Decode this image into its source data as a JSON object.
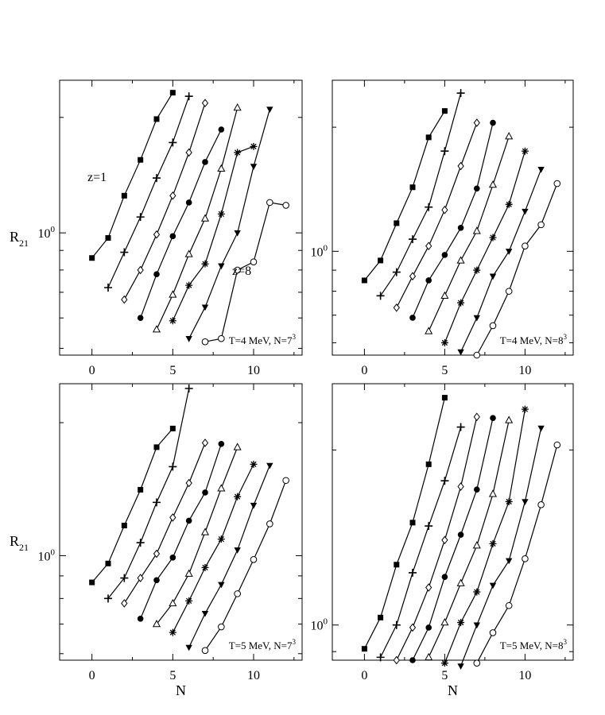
{
  "figure": {
    "ylabel_text": "R",
    "ylabel_sub": "21",
    "xlabel": "N"
  },
  "chart_data": [
    {
      "type": "line",
      "panel": "top-left",
      "yscale": "log",
      "xlim": [
        -2,
        13
      ],
      "ylim": [
        0.48,
        2.5
      ],
      "xticks": [
        0,
        5,
        10
      ],
      "yticklabel_base": "10",
      "yticklabel_exp": "0",
      "label_T": "T=4 MeV, N=7",
      "label_exp": "3",
      "annotations": [
        "z=1",
        "z=8"
      ],
      "series": [
        {
          "z": 1,
          "marker": "square-filled",
          "x": [
            0,
            1,
            2,
            3,
            4,
            5
          ],
          "y": [
            0.86,
            0.97,
            1.25,
            1.55,
            1.98,
            2.32
          ]
        },
        {
          "z": 2,
          "marker": "plus",
          "x": [
            1,
            2,
            3,
            4,
            5,
            6
          ],
          "y": [
            0.72,
            0.89,
            1.1,
            1.39,
            1.72,
            2.27
          ]
        },
        {
          "z": 3,
          "marker": "diamond-open",
          "x": [
            2,
            3,
            4,
            5,
            6,
            7
          ],
          "y": [
            0.67,
            0.8,
            0.99,
            1.25,
            1.62,
            2.18
          ]
        },
        {
          "z": 4,
          "marker": "circle-filled",
          "x": [
            3,
            4,
            5,
            6,
            7,
            8
          ],
          "y": [
            0.6,
            0.78,
            0.98,
            1.2,
            1.53,
            1.86
          ]
        },
        {
          "z": 5,
          "marker": "triangle-up-open",
          "x": [
            4,
            5,
            6,
            7,
            8,
            9
          ],
          "y": [
            0.56,
            0.69,
            0.88,
            1.09,
            1.47,
            2.12
          ]
        },
        {
          "z": 6,
          "marker": "star",
          "x": [
            5,
            6,
            7,
            8,
            9,
            10
          ],
          "y": [
            0.59,
            0.73,
            0.83,
            1.12,
            1.62,
            1.68
          ]
        },
        {
          "z": 7,
          "marker": "triangle-down-filled",
          "x": [
            6,
            7,
            8,
            9,
            10,
            11
          ],
          "y": [
            0.53,
            0.64,
            0.82,
            1.0,
            1.49,
            2.1
          ]
        },
        {
          "z": 8,
          "marker": "circle-open",
          "x": [
            7,
            8,
            9,
            10,
            11,
            12
          ],
          "y": [
            0.52,
            0.53,
            0.8,
            0.84,
            1.2,
            1.18
          ]
        }
      ]
    },
    {
      "type": "line",
      "panel": "top-right",
      "yscale": "log",
      "xlim": [
        -2,
        13
      ],
      "ylim": [
        0.56,
        2.6
      ],
      "xticks": [
        0,
        5,
        10
      ],
      "yticklabel_base": "10",
      "yticklabel_exp": "0",
      "label_T": "T=4 MeV, N=8",
      "label_exp": "3",
      "annotations": [],
      "series": [
        {
          "z": 1,
          "marker": "square-filled",
          "x": [
            0,
            1,
            2,
            3,
            4,
            5
          ],
          "y": [
            0.85,
            0.95,
            1.17,
            1.43,
            1.89,
            2.19
          ]
        },
        {
          "z": 2,
          "marker": "plus",
          "x": [
            1,
            2,
            3,
            4,
            5,
            6
          ],
          "y": [
            0.78,
            0.89,
            1.07,
            1.28,
            1.75,
            2.42
          ]
        },
        {
          "z": 3,
          "marker": "diamond-open",
          "x": [
            2,
            3,
            4,
            5,
            6,
            7
          ],
          "y": [
            0.73,
            0.87,
            1.03,
            1.26,
            1.61,
            2.05
          ]
        },
        {
          "z": 4,
          "marker": "circle-filled",
          "x": [
            3,
            4,
            5,
            6,
            7,
            8
          ],
          "y": [
            0.69,
            0.85,
            0.98,
            1.14,
            1.42,
            2.05
          ]
        },
        {
          "z": 5,
          "marker": "triangle-up-open",
          "x": [
            4,
            5,
            6,
            7,
            8,
            9
          ],
          "y": [
            0.64,
            0.78,
            0.95,
            1.12,
            1.45,
            1.9
          ]
        },
        {
          "z": 6,
          "marker": "star",
          "x": [
            5,
            6,
            7,
            8,
            9,
            10
          ],
          "y": [
            0.6,
            0.75,
            0.9,
            1.08,
            1.3,
            1.75
          ]
        },
        {
          "z": 7,
          "marker": "triangle-down-filled",
          "x": [
            6,
            7,
            8,
            9,
            10,
            11
          ],
          "y": [
            0.57,
            0.69,
            0.87,
            1.0,
            1.25,
            1.58
          ]
        },
        {
          "z": 8,
          "marker": "circle-open",
          "x": [
            7,
            8,
            9,
            10,
            11,
            12
          ],
          "y": [
            0.56,
            0.66,
            0.8,
            1.03,
            1.16,
            1.46
          ]
        }
      ]
    },
    {
      "type": "line",
      "panel": "bottom-left",
      "yscale": "log",
      "xlim": [
        -2,
        13
      ],
      "ylim": [
        0.58,
        2.45
      ],
      "xticks": [
        0,
        5,
        10
      ],
      "yticklabel_base": "10",
      "yticklabel_exp": "0",
      "label_T": "T=5 MeV, N=7",
      "label_exp": "3",
      "annotations": [],
      "series": [
        {
          "z": 1,
          "marker": "square-filled",
          "x": [
            0,
            1,
            2,
            3,
            4,
            5
          ],
          "y": [
            0.87,
            0.96,
            1.17,
            1.41,
            1.76,
            1.94
          ]
        },
        {
          "z": 2,
          "marker": "plus",
          "x": [
            1,
            2,
            3,
            4,
            5,
            6
          ],
          "y": [
            0.8,
            0.89,
            1.07,
            1.32,
            1.59,
            2.39
          ]
        },
        {
          "z": 3,
          "marker": "diamond-open",
          "x": [
            2,
            3,
            4,
            5,
            6,
            7
          ],
          "y": [
            0.78,
            0.89,
            1.01,
            1.22,
            1.46,
            1.8
          ]
        },
        {
          "z": 4,
          "marker": "circle-filled",
          "x": [
            3,
            4,
            5,
            6,
            7,
            8
          ],
          "y": [
            0.72,
            0.88,
            0.99,
            1.2,
            1.39,
            1.79
          ]
        },
        {
          "z": 5,
          "marker": "triangle-up-open",
          "x": [
            4,
            5,
            6,
            7,
            8,
            9
          ],
          "y": [
            0.7,
            0.78,
            0.91,
            1.13,
            1.42,
            1.76
          ]
        },
        {
          "z": 6,
          "marker": "star",
          "x": [
            5,
            6,
            7,
            8,
            9,
            10
          ],
          "y": [
            0.67,
            0.79,
            0.94,
            1.09,
            1.36,
            1.61
          ]
        },
        {
          "z": 7,
          "marker": "triangle-down-filled",
          "x": [
            6,
            7,
            8,
            9,
            10,
            11
          ],
          "y": [
            0.62,
            0.74,
            0.86,
            1.03,
            1.3,
            1.6
          ]
        },
        {
          "z": 8,
          "marker": "circle-open",
          "x": [
            7,
            8,
            9,
            10,
            11,
            12
          ],
          "y": [
            0.61,
            0.69,
            0.82,
            0.98,
            1.18,
            1.48
          ]
        }
      ]
    },
    {
      "type": "line",
      "panel": "bottom-right",
      "yscale": "log",
      "xlim": [
        -2,
        13
      ],
      "ylim": [
        0.87,
        2.6
      ],
      "xticks": [
        0,
        5,
        10
      ],
      "yticklabel_base": "10",
      "yticklabel_exp": "0",
      "label_T": "T=5 MeV, N=8",
      "label_exp": "3",
      "annotations": [],
      "series": [
        {
          "z": 1,
          "marker": "square-filled",
          "x": [
            0,
            1,
            2,
            3,
            4,
            5
          ],
          "y": [
            0.91,
            1.03,
            1.27,
            1.5,
            1.89,
            2.46
          ]
        },
        {
          "z": 2,
          "marker": "plus",
          "x": [
            1,
            2,
            3,
            4,
            5,
            6
          ],
          "y": [
            0.88,
            1.0,
            1.23,
            1.48,
            1.77,
            2.19
          ]
        },
        {
          "z": 3,
          "marker": "diamond-open",
          "x": [
            2,
            3,
            4,
            5,
            6,
            7
          ],
          "y": [
            0.87,
            0.99,
            1.16,
            1.4,
            1.73,
            2.28
          ]
        },
        {
          "z": 4,
          "marker": "circle-filled",
          "x": [
            3,
            4,
            5,
            6,
            7,
            8
          ],
          "y": [
            0.87,
            0.99,
            1.21,
            1.43,
            1.71,
            2.27
          ]
        },
        {
          "z": 5,
          "marker": "triangle-up-open",
          "x": [
            4,
            5,
            6,
            7,
            8,
            9
          ],
          "y": [
            0.88,
            1.01,
            1.18,
            1.37,
            1.68,
            2.25
          ]
        },
        {
          "z": 6,
          "marker": "star",
          "x": [
            5,
            6,
            7,
            8,
            9,
            10
          ],
          "y": [
            0.86,
            1.01,
            1.14,
            1.38,
            1.63,
            2.35
          ]
        },
        {
          "z": 7,
          "marker": "triangle-down-filled",
          "x": [
            6,
            7,
            8,
            9,
            10,
            11
          ],
          "y": [
            0.85,
            1.0,
            1.17,
            1.29,
            1.63,
            2.18
          ]
        },
        {
          "z": 8,
          "marker": "circle-open",
          "x": [
            7,
            8,
            9,
            10,
            11,
            12
          ],
          "y": [
            0.86,
            0.97,
            1.08,
            1.3,
            1.61,
            2.04
          ]
        }
      ]
    }
  ]
}
